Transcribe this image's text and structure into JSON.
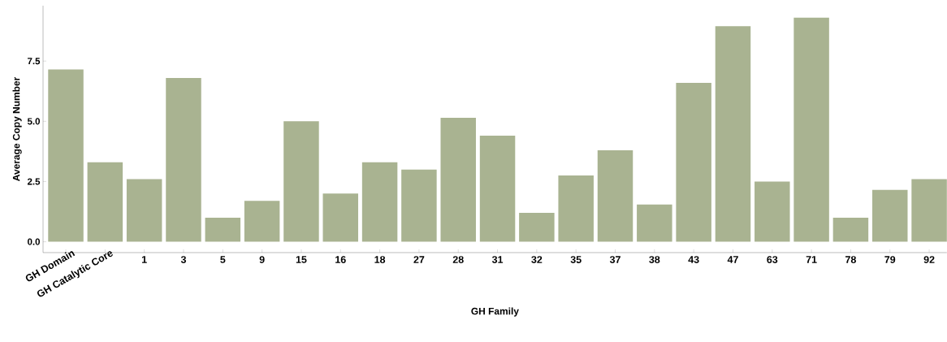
{
  "chart_data": {
    "type": "bar",
    "xlabel": "GH Family",
    "ylabel": "Average Copy Number",
    "categories": [
      "GH Domain",
      "GH Catalytic Core",
      "1",
      "3",
      "5",
      "9",
      "15",
      "16",
      "18",
      "27",
      "28",
      "31",
      "32",
      "35",
      "37",
      "38",
      "43",
      "47",
      "63",
      "71",
      "78",
      "79",
      "92"
    ],
    "values": [
      7.15,
      3.3,
      2.6,
      6.8,
      1.0,
      1.7,
      5.0,
      2.0,
      3.3,
      3.0,
      5.15,
      4.4,
      1.2,
      2.75,
      3.8,
      1.55,
      6.6,
      8.95,
      2.5,
      9.3,
      1.0,
      2.15,
      2.6
    ],
    "color": "#a9b391",
    "ylim": [
      -0.45,
      9.8
    ],
    "yticks": [
      {
        "value": 0,
        "label": "0.0"
      },
      {
        "value": 2.5,
        "label": "2.5"
      },
      {
        "value": 5,
        "label": "5.0"
      },
      {
        "value": 7.5,
        "label": "7.5"
      }
    ],
    "grid": false
  }
}
